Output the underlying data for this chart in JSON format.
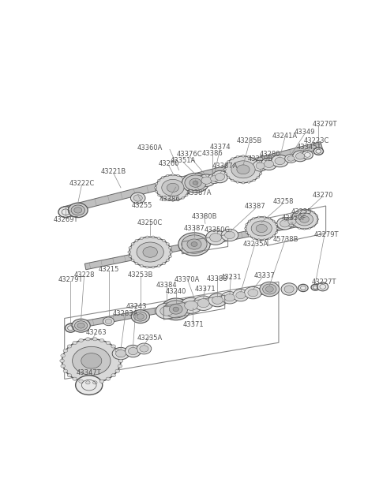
{
  "bg_color": "#ffffff",
  "line_color": "#555555",
  "text_color": "#555555",
  "fig_w": 4.8,
  "fig_h": 6.35,
  "dpi": 100,
  "xlim": [
    0,
    480
  ],
  "ylim": [
    0,
    635
  ]
}
